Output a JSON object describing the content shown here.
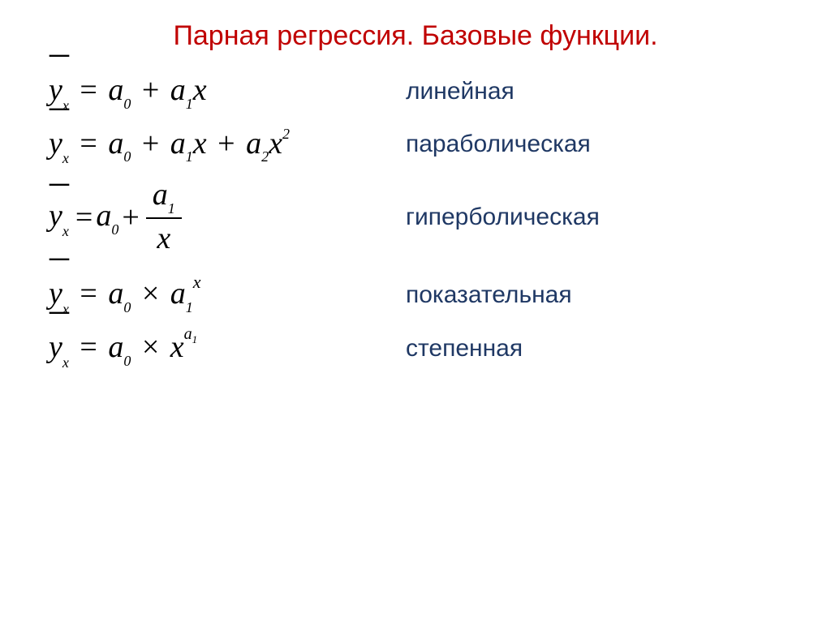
{
  "title": "Парная регрессия. Базовые функции.",
  "colors": {
    "title": "#c00000",
    "label": "#1f3864",
    "formula": "#000000",
    "background": "#ffffff"
  },
  "typography": {
    "title_fontsize": 34,
    "label_fontsize": 30,
    "formula_fontsize": 38,
    "title_family": "Arial",
    "label_family": "Arial",
    "formula_family": "Times New Roman"
  },
  "rows": [
    {
      "label": "линейная",
      "formula": {
        "y": "y",
        "ysub": "x",
        "eq": "=",
        "terms": [
          "a",
          "0",
          "+",
          "a",
          "1",
          "x"
        ]
      }
    },
    {
      "label": "параболическая",
      "formula": {
        "y": "y",
        "ysub": "x",
        "eq": "=",
        "terms": [
          "a",
          "0",
          "+",
          "a",
          "1",
          "x",
          "+",
          "a",
          "2",
          "x",
          "2"
        ]
      }
    },
    {
      "label": "гиперболическая",
      "formula": {
        "y": "y",
        "ysub": "x",
        "eq": "=",
        "a0": "a",
        "a0sub": "0",
        "plus": "+",
        "num_a": "a",
        "num_sub": "1",
        "den": "x"
      }
    },
    {
      "label": "показательная",
      "formula": {
        "y": "y",
        "ysub": "x",
        "eq": "=",
        "a0": "a",
        "a0sub": "0",
        "times": "×",
        "a1": "a",
        "a1sub": "1",
        "exp": "x"
      }
    },
    {
      "label": "степенная",
      "formula": {
        "y": "y",
        "ysub": "x",
        "eq": "=",
        "a0": "a",
        "a0sub": "0",
        "times": "×",
        "base": "x",
        "exp_a": "a",
        "exp_sub": "1"
      }
    }
  ]
}
